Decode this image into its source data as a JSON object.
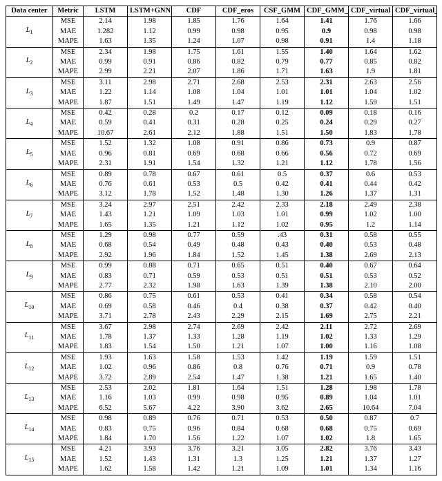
{
  "headers": [
    "Data center",
    "Metric",
    "LSTM",
    "LSTM+GNN",
    "CDF",
    "CDF_eros",
    "CSF_GMM",
    "CDF_GMM_sd",
    "CDF_virtual",
    "CDF_virtual_mn"
  ],
  "metrics": [
    "MSE",
    "MAE",
    "MAPE"
  ],
  "bold_col_index": 7,
  "groups": [
    {
      "dc": "L1",
      "rows": [
        [
          "2.14",
          "1.98",
          "1.85",
          "1.76",
          "1.64",
          "1.41",
          "1.76",
          "1.66"
        ],
        [
          "1.282",
          "1.12",
          "0.99",
          "0.98",
          "0.95",
          "0.9",
          "0.98",
          "0.98"
        ],
        [
          "1.63",
          "1.35",
          "1.24",
          "1.07",
          "0.98",
          "0.91",
          "1.4",
          "1.18"
        ]
      ]
    },
    {
      "dc": "L2",
      "rows": [
        [
          "2.34",
          "1.98",
          "1.75",
          "1.61",
          "1.55",
          "1.40",
          "1.64",
          "1.62"
        ],
        [
          "0.99",
          "0.91",
          "0.86",
          "0.82",
          "0.79",
          "0.77",
          "0.85",
          "0.82"
        ],
        [
          "2.99",
          "2.21",
          "2.07",
          "1.86",
          "1.71",
          "1.63",
          "1.9",
          "1.81"
        ]
      ]
    },
    {
      "dc": "L3",
      "rows": [
        [
          "3.11",
          "2.98",
          "2.71",
          "2.68",
          "2.53",
          "2.31",
          "2.63",
          "2.56"
        ],
        [
          "1.22",
          "1.14",
          "1.08",
          "1.04",
          "1.01",
          "1.01",
          "1.04",
          "1.02"
        ],
        [
          "1.87",
          "1.51",
          "1.49",
          "1.47",
          "1.19",
          "1.12",
          "1.59",
          "1.51"
        ]
      ]
    },
    {
      "dc": "L4",
      "rows": [
        [
          "0.42",
          "0.28",
          "0.2",
          "0.17",
          "0.12",
          "0.09",
          "0.18",
          "0.16"
        ],
        [
          "0.59",
          "0.41",
          "0.31",
          "0.28",
          "0.25",
          "0.24",
          "0.29",
          "0.27"
        ],
        [
          "10.67",
          "2.61",
          "2.12",
          "1.88",
          "1.51",
          "1.50",
          "1.83",
          "1.78"
        ]
      ]
    },
    {
      "dc": "L5",
      "rows": [
        [
          "1.52",
          "1.32",
          "1.08",
          "0.91",
          "0.86",
          "0.73",
          "0.9",
          "0.87"
        ],
        [
          "0.96",
          "0.81",
          "0.69",
          "0.68",
          "0.66",
          "0.56",
          "0.72",
          "0.69"
        ],
        [
          "2.31",
          "1.91",
          "1.54",
          "1.32",
          "1.21",
          "1.12",
          "1.78",
          "1.56"
        ]
      ]
    },
    {
      "dc": "L6",
      "rows": [
        [
          "0.89",
          "0.78",
          "0.67",
          "0.61",
          "0.5",
          "0.37",
          "0.6",
          "0.53"
        ],
        [
          "0.76",
          "0.61",
          "0.53",
          "0.5",
          "0.42",
          "0.41",
          "0.44",
          "0.42"
        ],
        [
          "3.12",
          "1.78",
          "1.52",
          "1.48",
          "1.30",
          "1.26",
          "1.37",
          "1.31"
        ]
      ]
    },
    {
      "dc": "L7",
      "rows": [
        [
          "3.24",
          "2.97",
          "2.51",
          "2.42",
          "2.33",
          "2.18",
          "2.49",
          "2.38"
        ],
        [
          "1.43",
          "1.21",
          "1.09",
          "1.03",
          "1.01",
          "0.99",
          "1.02",
          "1.00"
        ],
        [
          "1.65",
          "1.35",
          "1.21",
          "1.12",
          "1.02",
          "0.95",
          "1.2",
          "1.14"
        ]
      ]
    },
    {
      "dc": "L8",
      "rows": [
        [
          "1.29",
          "0.98",
          "0.77",
          "0.59",
          ".43",
          "0.31",
          "0.58",
          "0.55"
        ],
        [
          "0.68",
          "0.54",
          "0.49",
          "0.48",
          "0.43",
          "0.40",
          "0.53",
          "0.48"
        ],
        [
          "2.92",
          "1.96",
          "1.84",
          "1.52",
          "1.45",
          "1.38",
          "2.69",
          "2.13"
        ]
      ]
    },
    {
      "dc": "L9",
      "rows": [
        [
          "0.99",
          "0.88",
          "0.71",
          "0.65",
          "0.51",
          "0.40",
          "0.67",
          "0.64"
        ],
        [
          "0.83",
          "0.71",
          "0.59",
          "0.53",
          "0.51",
          "0.51",
          "0.53",
          "0.52"
        ],
        [
          "2.77",
          "2.32",
          "1.98",
          "1.63",
          "1.39",
          "1.38",
          "2.10",
          "2.00"
        ]
      ]
    },
    {
      "dc": "L10",
      "rows": [
        [
          "0.86",
          "0.75",
          "0.61",
          "0.53",
          "0.41",
          "0.34",
          "0.58",
          "0.54"
        ],
        [
          "0.69",
          "0.58",
          "0.46",
          "0.4",
          "0.38",
          "0.37",
          "0.42",
          "0.40"
        ],
        [
          "3.71",
          "2.78",
          "2.43",
          "2.29",
          "2.15",
          "1.69",
          "2.75",
          "2.21"
        ]
      ]
    },
    {
      "dc": "L11",
      "rows": [
        [
          "3.67",
          "2.98",
          "2.74",
          "2.69",
          "2.42",
          "2.11",
          "2.72",
          "2.69"
        ],
        [
          "1.78",
          "1.37",
          "1.33",
          "1.28",
          "1.19",
          "1.02",
          "1.33",
          "1.29"
        ],
        [
          "1.83",
          "1.54",
          "1.50",
          "1.21",
          "1.07",
          "1.00",
          "1.16",
          "1.08"
        ]
      ]
    },
    {
      "dc": "L12",
      "rows": [
        [
          "1.93",
          "1.63",
          "1.58",
          "1.53",
          "1.42",
          "1.19",
          "1.59",
          "1.51"
        ],
        [
          "1.02",
          "0.96",
          "0.86",
          "0.8",
          "0.76",
          "0.71",
          "0.9",
          "0.78"
        ],
        [
          "3.72",
          "2.89",
          "2.54",
          "1.47",
          "1.38",
          "1.21",
          "1.65",
          "1.40"
        ]
      ]
    },
    {
      "dc": "L13",
      "rows": [
        [
          "2.53",
          "2.02",
          "1.81",
          "1.64",
          "1.51",
          "1.28",
          "1.98",
          "1.78"
        ],
        [
          "1.16",
          "1.03",
          "0.99",
          "0.98",
          "0.95",
          "0.89",
          "1.04",
          "1.01"
        ],
        [
          "6.52",
          "5.67",
          "4.22",
          "3.90",
          "3.62",
          "2.65",
          "10.64",
          "7.04"
        ]
      ]
    },
    {
      "dc": "L14",
      "rows": [
        [
          "0.98",
          "0.89",
          "0.76",
          "0.71",
          "0.53",
          "0.50",
          "0.87",
          "0.7"
        ],
        [
          "0.83",
          "0.75",
          "0.96",
          "0.84",
          "0.68",
          "0.68",
          "0.75",
          "0.69"
        ],
        [
          "1.84",
          "1.70",
          "1.56",
          "1.22",
          "1.07",
          "1.02",
          "1.8",
          "1.65"
        ]
      ]
    },
    {
      "dc": "L15",
      "rows": [
        [
          "4.21",
          "3.93",
          "3.76",
          "3.21",
          "3.05",
          "2.82",
          "3.76",
          "3.43"
        ],
        [
          "1.52",
          "1.43",
          "1.31",
          "1.3",
          "1.25",
          "1.21",
          "1.37",
          "1.27"
        ],
        [
          "1.62",
          "1.58",
          "1.42",
          "1.21",
          "1.09",
          "1.01",
          "1.34",
          "1.16"
        ]
      ]
    }
  ]
}
